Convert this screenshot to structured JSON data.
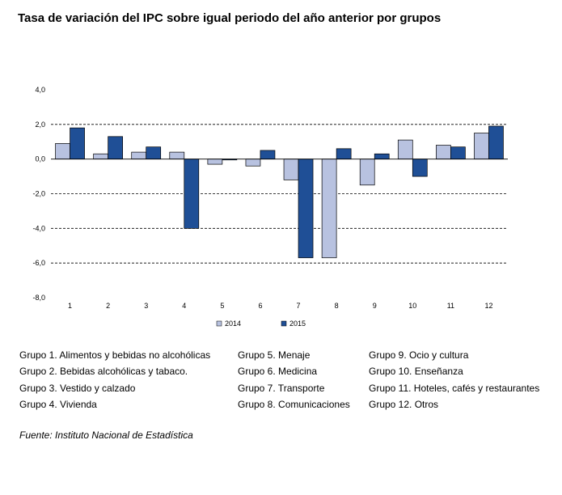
{
  "title": "Tasa de variación del IPC sobre igual periodo del año anterior por grupos",
  "chart_data": {
    "type": "bar",
    "categories": [
      "1",
      "2",
      "3",
      "4",
      "5",
      "6",
      "7",
      "8",
      "9",
      "10",
      "11",
      "12"
    ],
    "series": [
      {
        "name": "2014",
        "values": [
          0.9,
          0.3,
          0.4,
          0.4,
          -0.3,
          -0.4,
          -1.2,
          -5.7,
          -1.5,
          1.1,
          0.8,
          1.5
        ],
        "color": "#b8c2e0"
      },
      {
        "name": "2015",
        "values": [
          1.8,
          1.3,
          0.7,
          -4.0,
          -0.05,
          0.5,
          -5.7,
          0.6,
          0.3,
          -1.0,
          0.7,
          1.9
        ],
        "color": "#1f4f96"
      }
    ],
    "ylim": [
      -8,
      4
    ],
    "yticks": [
      4,
      2,
      0,
      -2,
      -4,
      -6,
      -8
    ],
    "ytick_labels": [
      "4,0",
      "2,0",
      "0,0",
      "-2,0",
      "-4,0",
      "-6,0",
      "-8,0"
    ],
    "gridlines": "dashed",
    "legend_position": "bottom"
  },
  "groups": {
    "col1": [
      "Grupo 1. Alimentos y bebidas no alcohólicas",
      "Grupo 2. Bebidas alcohólicas y  tabaco.",
      "Grupo 3. Vestido y calzado",
      "Grupo 4. Vivienda"
    ],
    "col2": [
      "Grupo 5. Menaje",
      "Grupo 6. Medicina",
      "Grupo 7. Transporte",
      "Grupo 8. Comunicaciones"
    ],
    "col3": [
      "Grupo 9. Ocio y cultura",
      "Grupo 10. Enseñanza",
      "Grupo 11. Hoteles, cafés y restaurantes",
      "Grupo 12. Otros"
    ]
  },
  "source": "Fuente: Instituto Nacional de Estadística"
}
